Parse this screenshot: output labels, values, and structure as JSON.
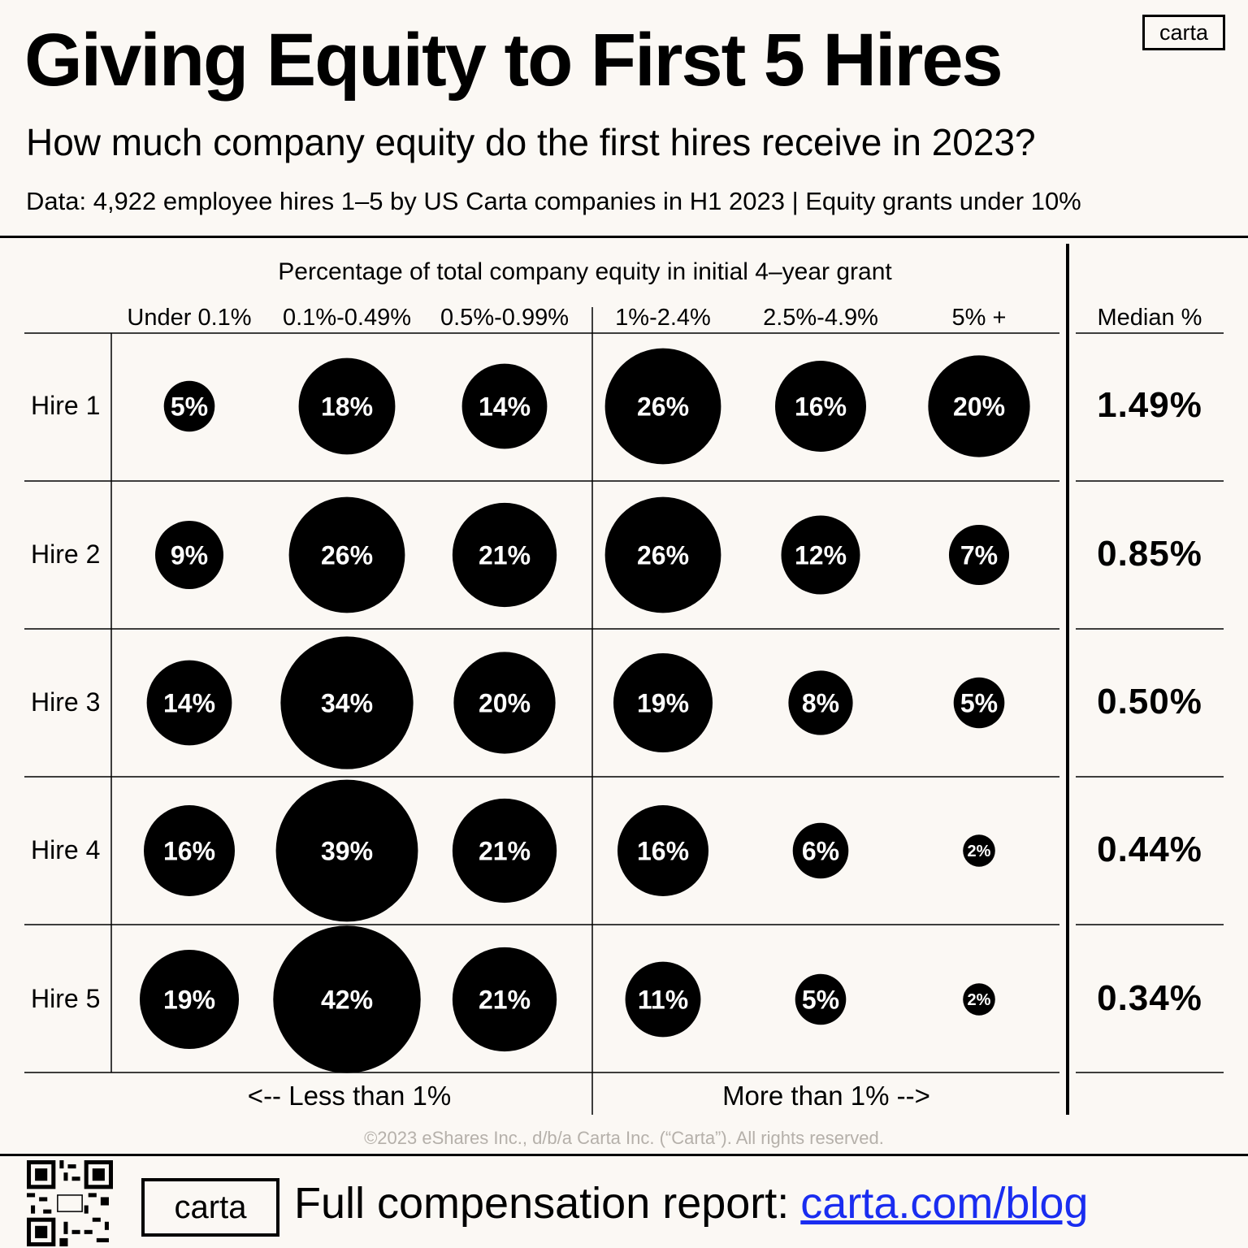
{
  "header": {
    "title": "Giving Equity to First 5 Hires",
    "subtitle": "How much company equity do the first hires receive in 2023?",
    "note": "Data: 4,922 employee hires 1–5 by US Carta companies in H1 2023  |  Equity grants under 10%",
    "logo": "carta"
  },
  "chart_data": {
    "type": "bubble-matrix",
    "title": "Percentage of total company equity in initial 4–year grant",
    "categories": [
      "Under 0.1%",
      "0.1%-0.49%",
      "0.5%-0.99%",
      "1%-2.4%",
      "2.5%-4.9%",
      "5% +"
    ],
    "rows": [
      "Hire 1",
      "Hire 2",
      "Hire 3",
      "Hire 4",
      "Hire 5"
    ],
    "values": [
      [
        5,
        18,
        14,
        26,
        16,
        20
      ],
      [
        9,
        26,
        21,
        26,
        12,
        7
      ],
      [
        14,
        34,
        20,
        19,
        8,
        5
      ],
      [
        16,
        39,
        21,
        16,
        6,
        2
      ],
      [
        19,
        42,
        21,
        11,
        5,
        2
      ]
    ],
    "value_suffix": "%",
    "median_label": "Median %",
    "medians": [
      "1.49%",
      "0.85%",
      "0.50%",
      "0.44%",
      "0.34%"
    ],
    "footer_left": "<-- Less than 1%",
    "footer_right": "More than 1% -->"
  },
  "footer": {
    "copyright": "©2023 eShares Inc., d/b/a Carta Inc. (“Carta”). All rights reserved.",
    "logo": "carta",
    "report_label": "Full compensation report:",
    "report_link": "carta.com/blog",
    "qr_icon": "qr-code-icon"
  }
}
